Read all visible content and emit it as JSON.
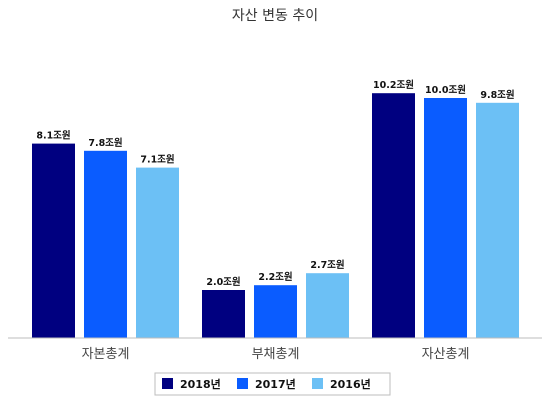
{
  "chart_data": {
    "type": "bar",
    "title": "자산 변동 추이",
    "categories": [
      "자본총계",
      "부채총계",
      "자산총계"
    ],
    "series": [
      {
        "name": "2018년",
        "color": "#000080",
        "values": [
          8.1,
          2.0,
          10.2
        ],
        "labels": [
          "8.1조원",
          "2.0조원",
          "10.2조원"
        ]
      },
      {
        "name": "2017년",
        "color": "#0a5cff",
        "values": [
          7.8,
          2.2,
          10.0
        ],
        "labels": [
          "7.8조원",
          "2.2조원",
          "10.0조원"
        ]
      },
      {
        "name": "2016년",
        "color": "#6cc0f5",
        "values": [
          7.1,
          2.7,
          9.8
        ],
        "labels": [
          "7.1조원",
          "2.7조원",
          "9.8조원"
        ]
      }
    ],
    "xlabel": "",
    "ylabel": "",
    "ylim": [
      0,
      13
    ],
    "grid": false,
    "legend": "bottom-center"
  }
}
